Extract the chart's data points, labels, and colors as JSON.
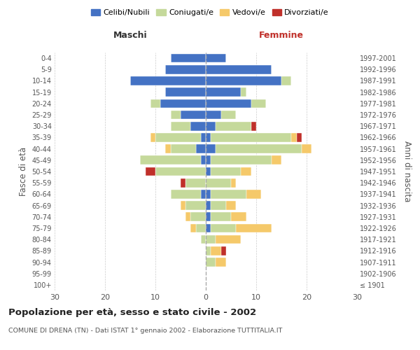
{
  "age_groups": [
    "100+",
    "95-99",
    "90-94",
    "85-89",
    "80-84",
    "75-79",
    "70-74",
    "65-69",
    "60-64",
    "55-59",
    "50-54",
    "45-49",
    "40-44",
    "35-39",
    "30-34",
    "25-29",
    "20-24",
    "15-19",
    "10-14",
    "5-9",
    "0-4"
  ],
  "birth_years": [
    "≤ 1901",
    "1902-1906",
    "1907-1911",
    "1912-1916",
    "1917-1921",
    "1922-1926",
    "1927-1931",
    "1932-1936",
    "1937-1941",
    "1942-1946",
    "1947-1951",
    "1952-1956",
    "1957-1961",
    "1962-1966",
    "1967-1971",
    "1972-1976",
    "1977-1981",
    "1982-1986",
    "1987-1991",
    "1992-1996",
    "1997-2001"
  ],
  "male": {
    "celibi": [
      0,
      0,
      0,
      0,
      0,
      0,
      0,
      0,
      1,
      0,
      0,
      1,
      2,
      1,
      3,
      5,
      9,
      8,
      15,
      8,
      7
    ],
    "coniugati": [
      0,
      0,
      0,
      0,
      1,
      2,
      3,
      4,
      6,
      4,
      10,
      12,
      5,
      9,
      4,
      2,
      2,
      0,
      0,
      0,
      0
    ],
    "vedovi": [
      0,
      0,
      0,
      0,
      0,
      1,
      1,
      1,
      0,
      0,
      0,
      0,
      1,
      1,
      0,
      0,
      0,
      0,
      0,
      0,
      0
    ],
    "divorziati": [
      0,
      0,
      0,
      0,
      0,
      0,
      0,
      0,
      0,
      1,
      2,
      0,
      0,
      0,
      0,
      0,
      0,
      0,
      0,
      0,
      0
    ]
  },
  "female": {
    "nubili": [
      0,
      0,
      0,
      0,
      0,
      1,
      1,
      1,
      1,
      0,
      1,
      1,
      2,
      1,
      2,
      3,
      9,
      7,
      15,
      13,
      4
    ],
    "coniugate": [
      0,
      0,
      2,
      1,
      2,
      5,
      4,
      3,
      7,
      5,
      6,
      12,
      17,
      16,
      7,
      3,
      3,
      1,
      2,
      0,
      0
    ],
    "vedove": [
      0,
      0,
      2,
      2,
      5,
      7,
      3,
      2,
      3,
      1,
      2,
      2,
      2,
      1,
      0,
      0,
      0,
      0,
      0,
      0,
      0
    ],
    "divorziate": [
      0,
      0,
      0,
      1,
      0,
      0,
      0,
      0,
      0,
      0,
      0,
      0,
      0,
      1,
      1,
      0,
      0,
      0,
      0,
      0,
      0
    ]
  },
  "colors": {
    "celibi_nubili": "#4472C4",
    "coniugati": "#C5D99B",
    "vedovi": "#F5C96A",
    "divorziati": "#C0302A"
  },
  "xlim": 30,
  "title": "Popolazione per età, sesso e stato civile - 2002",
  "subtitle": "COMUNE DI DRENA (TN) - Dati ISTAT 1° gennaio 2002 - Elaborazione TUTTITALIA.IT",
  "ylabel_left": "Fasce di età",
  "ylabel_right": "Anni di nascita",
  "header_maschi": "Maschi",
  "header_femmine": "Femmine",
  "legend_labels": [
    "Celibi/Nubili",
    "Coniugati/e",
    "Vedovi/e",
    "Divorziati/e"
  ],
  "bg_color": "#FFFFFF"
}
